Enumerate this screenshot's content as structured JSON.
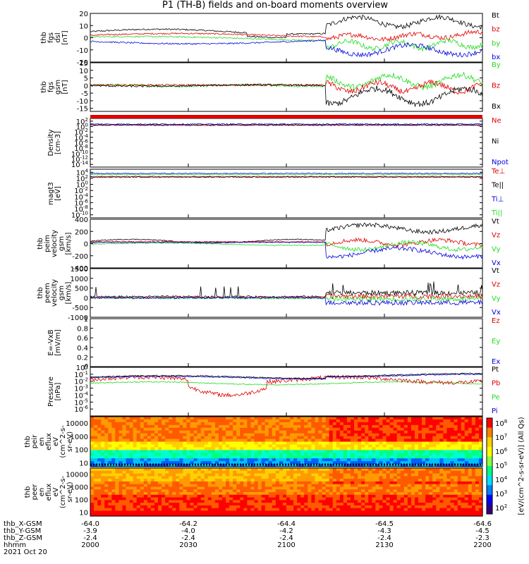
{
  "title": "P1  (TH-B) fields and on-board moments overview",
  "colors": {
    "black": "#000000",
    "red": "#e00000",
    "green": "#22dd22",
    "blue": "#0000e0",
    "yellow": "#ffff00",
    "cyan": "#00d8d8"
  },
  "chart_data": [
    {
      "type": "line",
      "id": "fgs_dsl",
      "ylabel": [
        "thb",
        "fgs",
        "dsl",
        "[nT]"
      ],
      "ylim": [
        -20,
        20
      ],
      "yticks": [
        20,
        10,
        0,
        -10,
        -20
      ],
      "series": [
        {
          "name": "Bt",
          "color": "black",
          "shape": "bt"
        },
        {
          "name": "bz",
          "color": "red",
          "shape": "bz"
        },
        {
          "name": "by",
          "color": "green",
          "shape": "by"
        },
        {
          "name": "bx",
          "color": "blue",
          "shape": "bx"
        }
      ]
    },
    {
      "type": "line",
      "id": "fgs_gsm",
      "ylabel": [
        "thb",
        "fgs",
        "gsm",
        "[nT]"
      ],
      "ylim": [
        -17,
        15
      ],
      "yticks": [
        15,
        10,
        5,
        0,
        -5,
        -10,
        -15
      ],
      "series": [
        {
          "name": "By",
          "color": "green",
          "shape": "gBy"
        },
        {
          "name": "Bz",
          "color": "red",
          "shape": "gBz"
        },
        {
          "name": "Bx",
          "color": "black",
          "shape": "gBx"
        }
      ]
    },
    {
      "type": "line",
      "id": "density",
      "ylabel": [
        "Density",
        "[cm-3]"
      ],
      "ylim": [
        -15,
        3
      ],
      "log": true,
      "yticks": [
        "10^2",
        "10^0",
        "10^-2",
        "10^-4",
        "10^-6",
        "10^-8",
        "10^-10",
        "10^-12",
        "10^-14"
      ],
      "series": [
        {
          "name": "Ne",
          "color": "red"
        },
        {
          "name": "Ni",
          "color": "black"
        },
        {
          "name": "Npot",
          "color": "blue"
        }
      ]
    },
    {
      "type": "line",
      "id": "temp",
      "ylabel": [
        "magt3",
        "[eV]"
      ],
      "ylim": [
        -11,
        5
      ],
      "log": true,
      "yticks": [
        "10^4",
        "10^2",
        "10^0",
        "10^-2",
        "10^-4",
        "10^-6",
        "10^-8",
        "10^-10"
      ],
      "series": [
        {
          "name": "Te⊥",
          "color": "red"
        },
        {
          "name": "Te||",
          "color": "black"
        },
        {
          "name": "Ti⊥",
          "color": "blue"
        },
        {
          "name": "Ti||",
          "color": "green"
        }
      ]
    },
    {
      "type": "line",
      "id": "peim",
      "ylabel": [
        "thb",
        "peim",
        "velocity",
        "gsm",
        "[km/s]"
      ],
      "ylim": [
        -400,
        400
      ],
      "yticks": [
        400,
        200,
        0,
        -200,
        -400
      ],
      "series": [
        {
          "name": "Vt",
          "color": "black"
        },
        {
          "name": "Vz",
          "color": "red"
        },
        {
          "name": "Vy",
          "color": "green"
        },
        {
          "name": "Vx",
          "color": "blue"
        }
      ]
    },
    {
      "type": "line",
      "id": "peem",
      "ylabel": [
        "thb",
        "peem",
        "velocity",
        "gsm",
        "[km/s]"
      ],
      "ylim": [
        -1000,
        1500
      ],
      "yticks": [
        1500,
        1000,
        500,
        0,
        -500,
        -1000
      ],
      "series": [
        {
          "name": "Vt",
          "color": "black"
        },
        {
          "name": "Vz",
          "color": "red"
        },
        {
          "name": "Vy",
          "color": "green"
        },
        {
          "name": "Vx",
          "color": "blue"
        }
      ]
    },
    {
      "type": "line",
      "id": "efield",
      "ylabel": [
        "E=-VxB",
        "[mV/m]"
      ],
      "ylim": [
        0,
        1
      ],
      "yticks": [
        1.0,
        0.8,
        0.6,
        0.4,
        0.2,
        0.0
      ],
      "series": [
        {
          "name": "Ez",
          "color": "red"
        },
        {
          "name": "Ey",
          "color": "green"
        },
        {
          "name": "Ex",
          "color": "blue"
        }
      ]
    },
    {
      "type": "line",
      "id": "pressure",
      "ylabel": [
        "Pressure",
        "[nPa]"
      ],
      "ylim": [
        -7,
        0
      ],
      "log": true,
      "yticks": [
        "10^0",
        "10^-1",
        "10^-2",
        "10^-3",
        "10^-4",
        "10^-5",
        "10^-6"
      ],
      "series": [
        {
          "name": "Pt",
          "color": "black"
        },
        {
          "name": "Pb",
          "color": "red"
        },
        {
          "name": "Pe",
          "color": "green"
        },
        {
          "name": "Pi",
          "color": "blue"
        }
      ]
    },
    {
      "type": "heatmap",
      "id": "peir",
      "ylabel": [
        "thb",
        "peir",
        "en",
        "eflux",
        "eV",
        "(cm^2-s-",
        "sr-eV)"
      ],
      "ylim": [
        5,
        30000
      ],
      "log": true,
      "yticks": [
        "10000",
        "1000",
        "100",
        "10"
      ]
    },
    {
      "type": "heatmap",
      "id": "peer",
      "ylabel": [
        "thb",
        "peer",
        "en",
        "eflux",
        "eV",
        "(cm^2-s-",
        "sr-eV)"
      ],
      "ylim": [
        5,
        30000
      ],
      "log": true,
      "yticks": [
        "10000",
        "1000",
        "100",
        "10"
      ]
    }
  ],
  "colorbar": {
    "ticks": [
      "10^8",
      "10^7",
      "10^6",
      "10^5",
      "10^4",
      "10^3",
      "10^2"
    ],
    "label": "[eV/(cm^2-s-sr-eV)] (All Qs)"
  },
  "axis": {
    "row_labels": [
      "thb_X-GSM",
      "thb_Y-GSM",
      "thb_Z-GSM",
      "hhmm",
      "2021 Oct 20"
    ],
    "ticks": [
      {
        "x": "-64.0",
        "y": "-3.9",
        "z": "-2.4",
        "t": "2000"
      },
      {
        "x": "-64.2",
        "y": "-4.0",
        "z": "-2.4",
        "t": "2030"
      },
      {
        "x": "-64.4",
        "y": "-4.2",
        "z": "-2.4",
        "t": "2100"
      },
      {
        "x": "-64.5",
        "y": "-4.3",
        "z": "-2.4",
        "t": "2130"
      },
      {
        "x": "-64.6",
        "y": "-4.5",
        "z": "-2.3",
        "t": "2200"
      }
    ]
  }
}
